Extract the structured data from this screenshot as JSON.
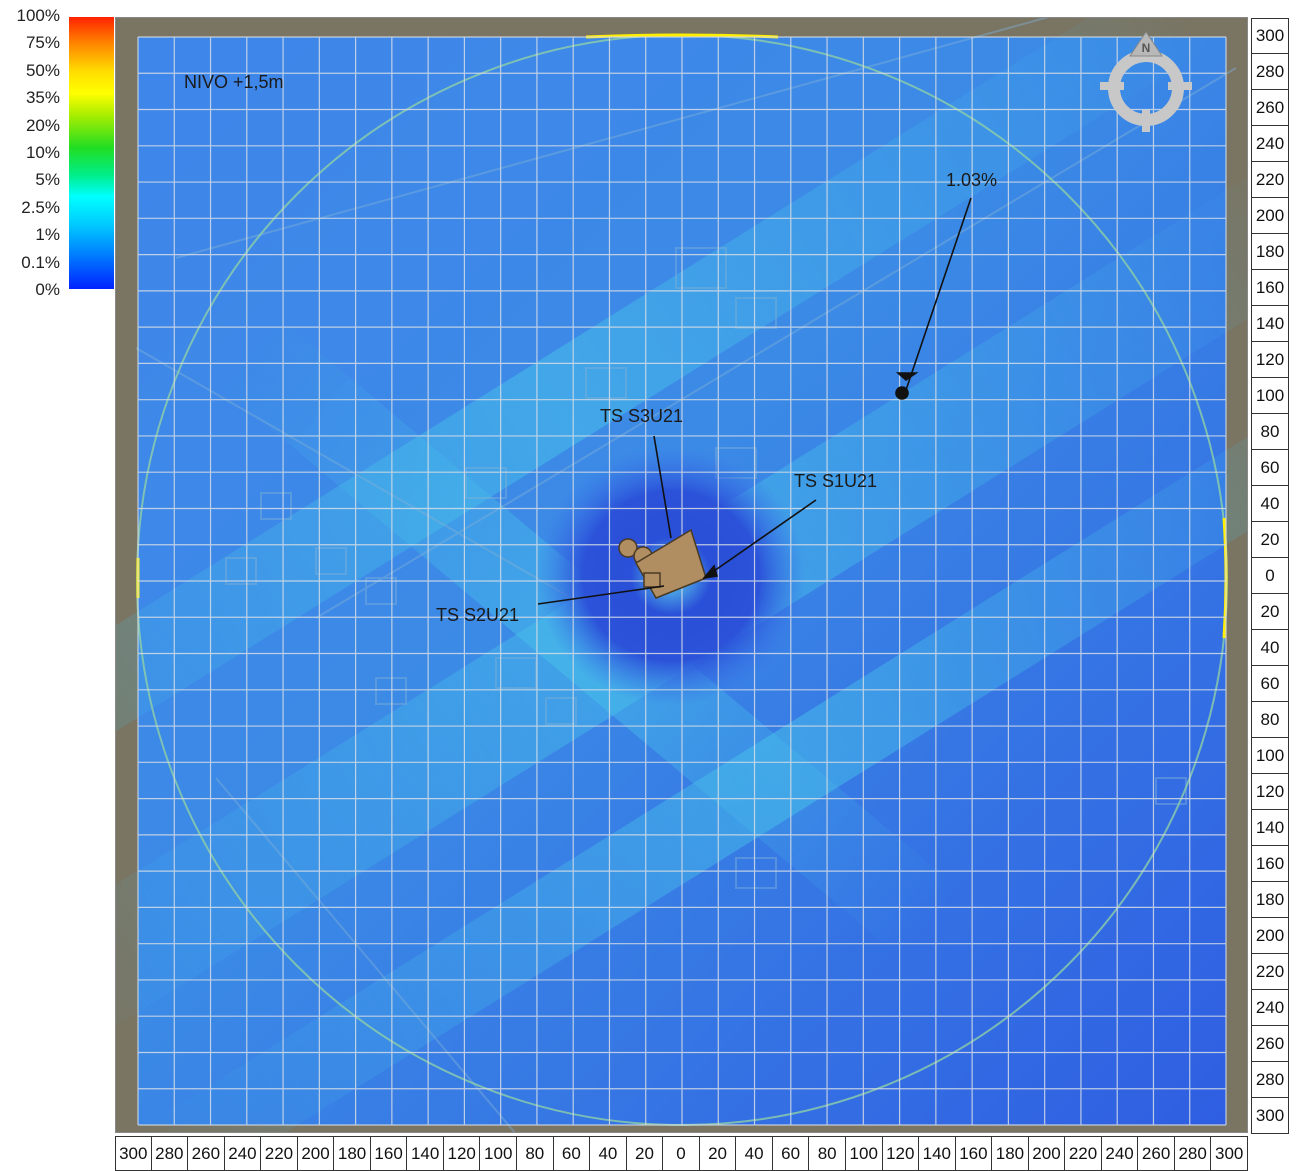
{
  "legend": {
    "labels": [
      "100%",
      "75%",
      "50%",
      "35%",
      "20%",
      "10%",
      "5%",
      "2.5%",
      "1%",
      "0.1%",
      "0%"
    ]
  },
  "map": {
    "level_label": "NIVO +1,5m",
    "max_value_label": "1.03%",
    "sources": [
      "TS S3U21",
      "TS S1U21",
      "TS S2U21"
    ],
    "compass_letter": "N",
    "colors": {
      "low": "#2f64e6",
      "mid": "#3aa0e8",
      "ring": "#ffee00"
    }
  },
  "axis_right": [
    "300",
    "280",
    "260",
    "240",
    "220",
    "200",
    "180",
    "160",
    "140",
    "120",
    "100",
    "80",
    "60",
    "40",
    "20",
    "0",
    "20",
    "40",
    "60",
    "80",
    "100",
    "120",
    "140",
    "160",
    "180",
    "200",
    "220",
    "240",
    "260",
    "280",
    "300"
  ],
  "axis_bottom": [
    "300",
    "280",
    "260",
    "240",
    "220",
    "200",
    "180",
    "160",
    "140",
    "120",
    "100",
    "80",
    "60",
    "40",
    "20",
    "0",
    "20",
    "40",
    "60",
    "80",
    "100",
    "120",
    "140",
    "160",
    "180",
    "200",
    "220",
    "240",
    "260",
    "280",
    "300"
  ]
}
